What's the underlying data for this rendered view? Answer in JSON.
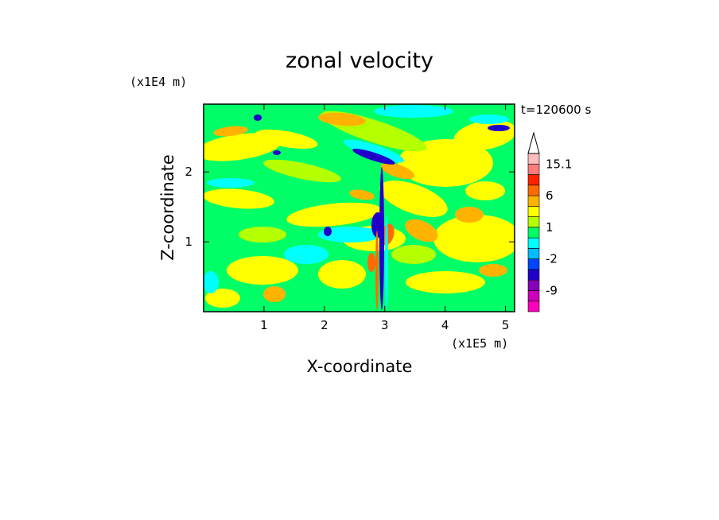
{
  "chart_data": {
    "type": "heatmap",
    "title": "zonal velocity",
    "time_label": "t=120600 s",
    "xlabel": "X-coordinate",
    "ylabel": "Z-coordinate",
    "x_unit": "(x1E5 m)",
    "y_unit": "(x1E4 m)",
    "xlim": [
      0,
      5.15
    ],
    "ylim": [
      0,
      2.97
    ],
    "x_ticks": [
      {
        "value": 1,
        "label": "1"
      },
      {
        "value": 2,
        "label": "2"
      },
      {
        "value": 3,
        "label": "3"
      },
      {
        "value": 4,
        "label": "4"
      },
      {
        "value": 5,
        "label": "5"
      }
    ],
    "y_ticks": [
      {
        "value": 1,
        "label": "1"
      },
      {
        "value": 2,
        "label": "2"
      }
    ],
    "colorbar": {
      "levels": [
        -15,
        -12,
        -9,
        -6,
        -3,
        -2,
        -1,
        0,
        1,
        2,
        3,
        6,
        9,
        12,
        15.1
      ],
      "colors": [
        "#ff00bb",
        "#cc00bb",
        "#8800bb",
        "#2200cc",
        "#0044ff",
        "#00bbff",
        "#00ffff",
        "#00ff66",
        "#b4ff00",
        "#ffff00",
        "#ffb300",
        "#ff6a00",
        "#ff2200",
        "#ff7b7b",
        "#ffbcbc"
      ],
      "extend_max_color": "#ffffff",
      "labels": [
        {
          "value": 15.1,
          "label": "15.1"
        },
        {
          "value": 6,
          "label": "6"
        },
        {
          "value": 1,
          "label": "1"
        },
        {
          "value": -2,
          "label": "-2"
        },
        {
          "value": -9,
          "label": "-9"
        }
      ]
    },
    "field_colors": {
      "green": "#00ff66",
      "yellow": "#ffff00",
      "lime": "#b4ff00",
      "orange": "#ffb300",
      "cyan": "#00ffff",
      "blue": "#2200cc",
      "red": "#ff6a00"
    }
  }
}
